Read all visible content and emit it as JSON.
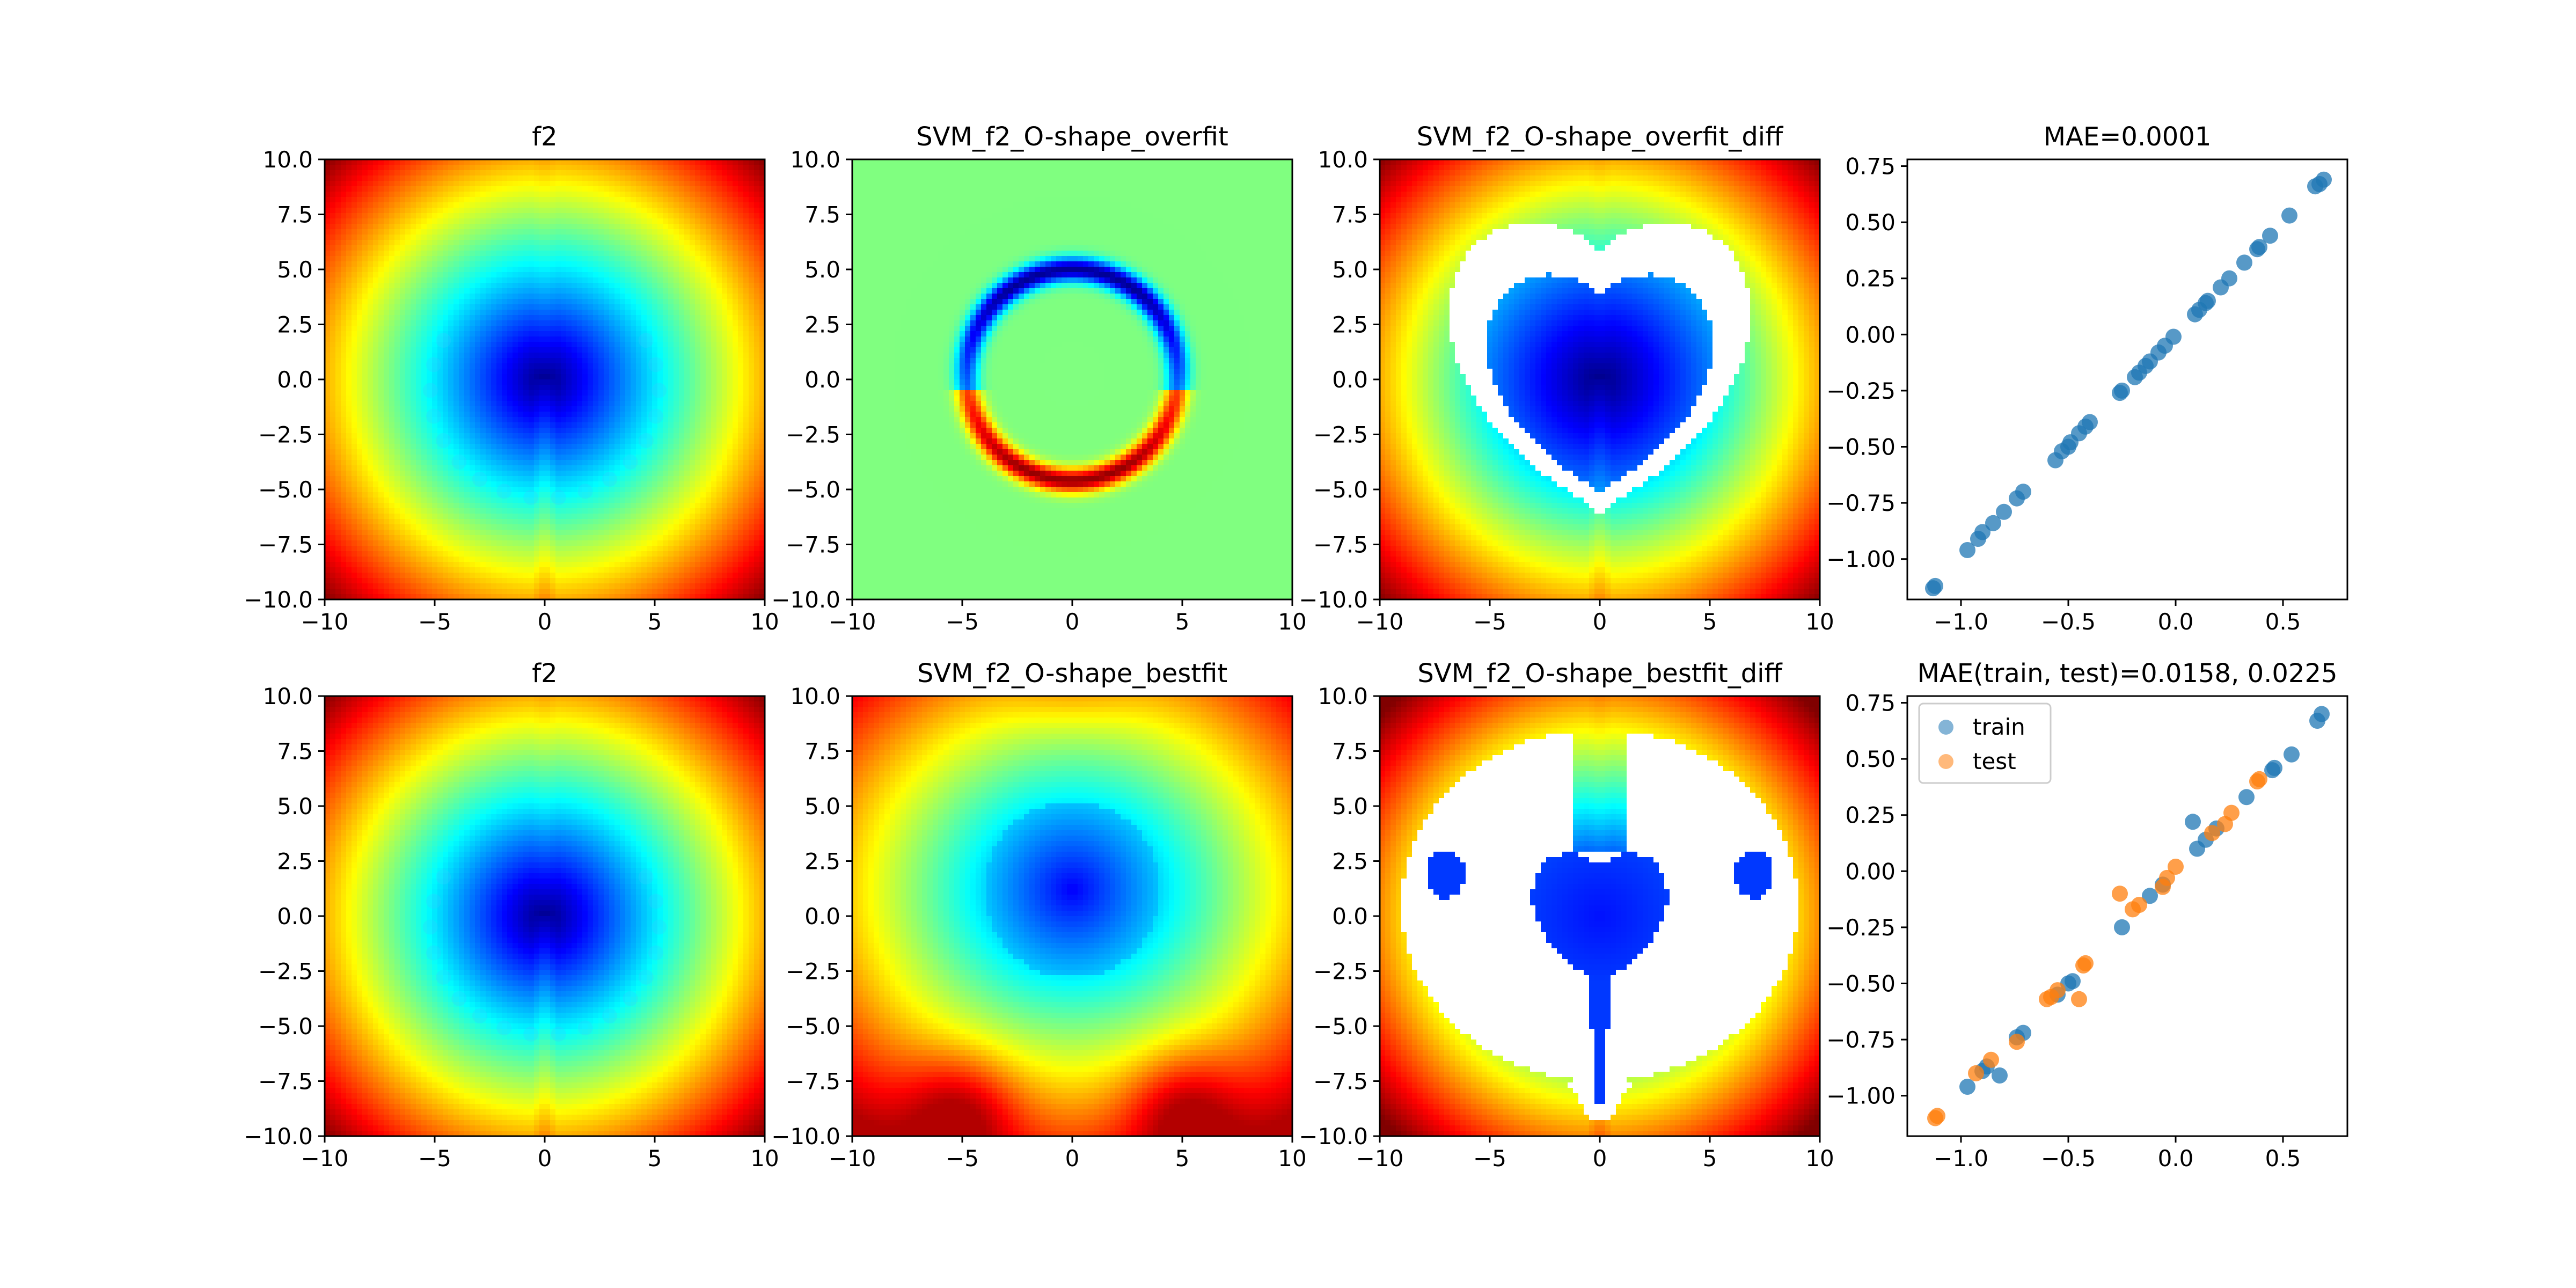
{
  "chart_data": [
    {
      "type": "heatmap",
      "title": "f2",
      "xlim": [
        -10,
        10
      ],
      "ylim": [
        -10,
        10
      ],
      "xticks": [
        "-10",
        "-5",
        "0",
        "5",
        "10"
      ],
      "yticks": [
        "10.0",
        "7.5",
        "5.0",
        "2.5",
        "0.0",
        "-2.5",
        "-5.0",
        "-7.5",
        "-10.0"
      ],
      "colormap": "jet",
      "pattern": "heart",
      "overlay_points": true
    },
    {
      "type": "heatmap",
      "title": "SVM_f2_O-shape_overfit",
      "xlim": [
        -10,
        10
      ],
      "ylim": [
        -10,
        10
      ],
      "xticks": [
        "-10",
        "-5",
        "0",
        "5",
        "10"
      ],
      "yticks": [
        "10.0",
        "7.5",
        "5.0",
        "2.5",
        "0.0",
        "-2.5",
        "-5.0",
        "-7.5",
        "-10.0"
      ],
      "colormap": "jet",
      "pattern": "ring"
    },
    {
      "type": "heatmap",
      "title": "SVM_f2_O-shape_overfit_diff",
      "xlim": [
        -10,
        10
      ],
      "ylim": [
        -10,
        10
      ],
      "xticks": [
        "-10",
        "-5",
        "0",
        "5",
        "10"
      ],
      "yticks": [
        "10.0",
        "7.5",
        "5.0",
        "2.5",
        "0.0",
        "-2.5",
        "-5.0",
        "-7.5",
        "-10.0"
      ],
      "colormap": "jet",
      "pattern": "heart_diff_overfit"
    },
    {
      "type": "scatter",
      "title": "MAE=0.0001",
      "xlim": [
        -1.25,
        0.8
      ],
      "ylim": [
        -1.18,
        0.78
      ],
      "xticks": [
        "-1.0",
        "-0.5",
        "0.0",
        "0.5"
      ],
      "yticks": [
        "0.75",
        "0.50",
        "0.25",
        "0.00",
        "-0.25",
        "-0.50",
        "-0.75",
        "-1.00"
      ],
      "xtick_values": [
        -1.0,
        -0.5,
        0.0,
        0.5
      ],
      "ytick_values": [
        0.75,
        0.5,
        0.25,
        0.0,
        -0.25,
        -0.5,
        -0.75,
        -1.0
      ],
      "series": [
        {
          "color": "#1f77b4",
          "points": [
            [
              -1.13,
              -1.13
            ],
            [
              -1.12,
              -1.12
            ],
            [
              -0.97,
              -0.96
            ],
            [
              -0.92,
              -0.91
            ],
            [
              -0.9,
              -0.88
            ],
            [
              -0.85,
              -0.84
            ],
            [
              -0.8,
              -0.79
            ],
            [
              -0.74,
              -0.73
            ],
            [
              -0.71,
              -0.7
            ],
            [
              -0.56,
              -0.56
            ],
            [
              -0.53,
              -0.52
            ],
            [
              -0.5,
              -0.5
            ],
            [
              -0.49,
              -0.48
            ],
            [
              -0.45,
              -0.44
            ],
            [
              -0.42,
              -0.41
            ],
            [
              -0.4,
              -0.39
            ],
            [
              -0.26,
              -0.26
            ],
            [
              -0.25,
              -0.25
            ],
            [
              -0.19,
              -0.19
            ],
            [
              -0.17,
              -0.17
            ],
            [
              -0.14,
              -0.14
            ],
            [
              -0.12,
              -0.12
            ],
            [
              -0.08,
              -0.08
            ],
            [
              -0.05,
              -0.05
            ],
            [
              -0.01,
              -0.01
            ],
            [
              0.09,
              0.09
            ],
            [
              0.11,
              0.11
            ],
            [
              0.14,
              0.14
            ],
            [
              0.15,
              0.15
            ],
            [
              0.21,
              0.21
            ],
            [
              0.25,
              0.25
            ],
            [
              0.32,
              0.32
            ],
            [
              0.38,
              0.38
            ],
            [
              0.39,
              0.39
            ],
            [
              0.44,
              0.44
            ],
            [
              0.53,
              0.53
            ],
            [
              0.65,
              0.66
            ],
            [
              0.67,
              0.67
            ],
            [
              0.69,
              0.69
            ]
          ]
        }
      ]
    },
    {
      "type": "heatmap",
      "title": "f2",
      "xlim": [
        -10,
        10
      ],
      "ylim": [
        -10,
        10
      ],
      "xticks": [
        "-10",
        "-5",
        "0",
        "5",
        "10"
      ],
      "yticks": [
        "10.0",
        "7.5",
        "5.0",
        "2.5",
        "0.0",
        "-2.5",
        "-5.0",
        "-7.5",
        "-10.0"
      ],
      "colormap": "jet",
      "pattern": "heart",
      "overlay_points": true
    },
    {
      "type": "heatmap",
      "title": "SVM_f2_O-shape_bestfit",
      "xlim": [
        -10,
        10
      ],
      "ylim": [
        -10,
        10
      ],
      "xticks": [
        "-10",
        "-5",
        "0",
        "5",
        "10"
      ],
      "yticks": [
        "10.0",
        "7.5",
        "5.0",
        "2.5",
        "0.0",
        "-2.5",
        "-5.0",
        "-7.5",
        "-10.0"
      ],
      "colormap": "jet",
      "pattern": "bestfit"
    },
    {
      "type": "heatmap",
      "title": "SVM_f2_O-shape_bestfit_diff",
      "xlim": [
        -10,
        10
      ],
      "ylim": [
        -10,
        10
      ],
      "xticks": [
        "-10",
        "-5",
        "0",
        "5",
        "10"
      ],
      "yticks": [
        "10.0",
        "7.5",
        "5.0",
        "2.5",
        "0.0",
        "-2.5",
        "-5.0",
        "-7.5",
        "-10.0"
      ],
      "colormap": "jet",
      "pattern": "bestfit_diff"
    },
    {
      "type": "scatter",
      "title": "MAE(train, test)=0.0158, 0.0225",
      "xlim": [
        -1.25,
        0.8
      ],
      "ylim": [
        -1.18,
        0.78
      ],
      "xticks": [
        "-1.0",
        "-0.5",
        "0.0",
        "0.5"
      ],
      "yticks": [
        "0.75",
        "0.50",
        "0.25",
        "0.00",
        "-0.25",
        "-0.50",
        "-0.75",
        "-1.00"
      ],
      "xtick_values": [
        -1.0,
        -0.5,
        0.0,
        0.5
      ],
      "ytick_values": [
        0.75,
        0.5,
        0.25,
        0.0,
        -0.25,
        -0.5,
        -0.75,
        -1.0
      ],
      "legend": "top-left",
      "series": [
        {
          "name": "train",
          "color": "#1f77b4",
          "points": [
            [
              -0.97,
              -0.96
            ],
            [
              -0.9,
              -0.89
            ],
            [
              -0.88,
              -0.87
            ],
            [
              -0.82,
              -0.91
            ],
            [
              -0.74,
              -0.74
            ],
            [
              -0.71,
              -0.72
            ],
            [
              -0.55,
              -0.55
            ],
            [
              -0.5,
              -0.5
            ],
            [
              -0.48,
              -0.49
            ],
            [
              -0.25,
              -0.25
            ],
            [
              -0.12,
              -0.11
            ],
            [
              -0.06,
              -0.06
            ],
            [
              0.08,
              0.22
            ],
            [
              0.1,
              0.1
            ],
            [
              0.14,
              0.14
            ],
            [
              0.19,
              0.19
            ],
            [
              0.33,
              0.33
            ],
            [
              0.45,
              0.45
            ],
            [
              0.46,
              0.46
            ],
            [
              0.54,
              0.52
            ],
            [
              0.66,
              0.67
            ],
            [
              0.68,
              0.7
            ]
          ]
        },
        {
          "name": "test",
          "color": "#ff7f0e",
          "points": [
            [
              -1.12,
              -1.1
            ],
            [
              -1.11,
              -1.09
            ],
            [
              -0.93,
              -0.9
            ],
            [
              -0.86,
              -0.84
            ],
            [
              -0.74,
              -0.76
            ],
            [
              -0.6,
              -0.57
            ],
            [
              -0.58,
              -0.56
            ],
            [
              -0.55,
              -0.53
            ],
            [
              -0.45,
              -0.57
            ],
            [
              -0.43,
              -0.42
            ],
            [
              -0.42,
              -0.41
            ],
            [
              -0.26,
              -0.1
            ],
            [
              -0.2,
              -0.17
            ],
            [
              -0.17,
              -0.15
            ],
            [
              -0.06,
              -0.07
            ],
            [
              -0.04,
              -0.03
            ],
            [
              0.0,
              0.02
            ],
            [
              0.17,
              0.17
            ],
            [
              0.23,
              0.21
            ],
            [
              0.26,
              0.26
            ],
            [
              0.38,
              0.4
            ],
            [
              0.39,
              0.41
            ]
          ]
        }
      ]
    }
  ]
}
